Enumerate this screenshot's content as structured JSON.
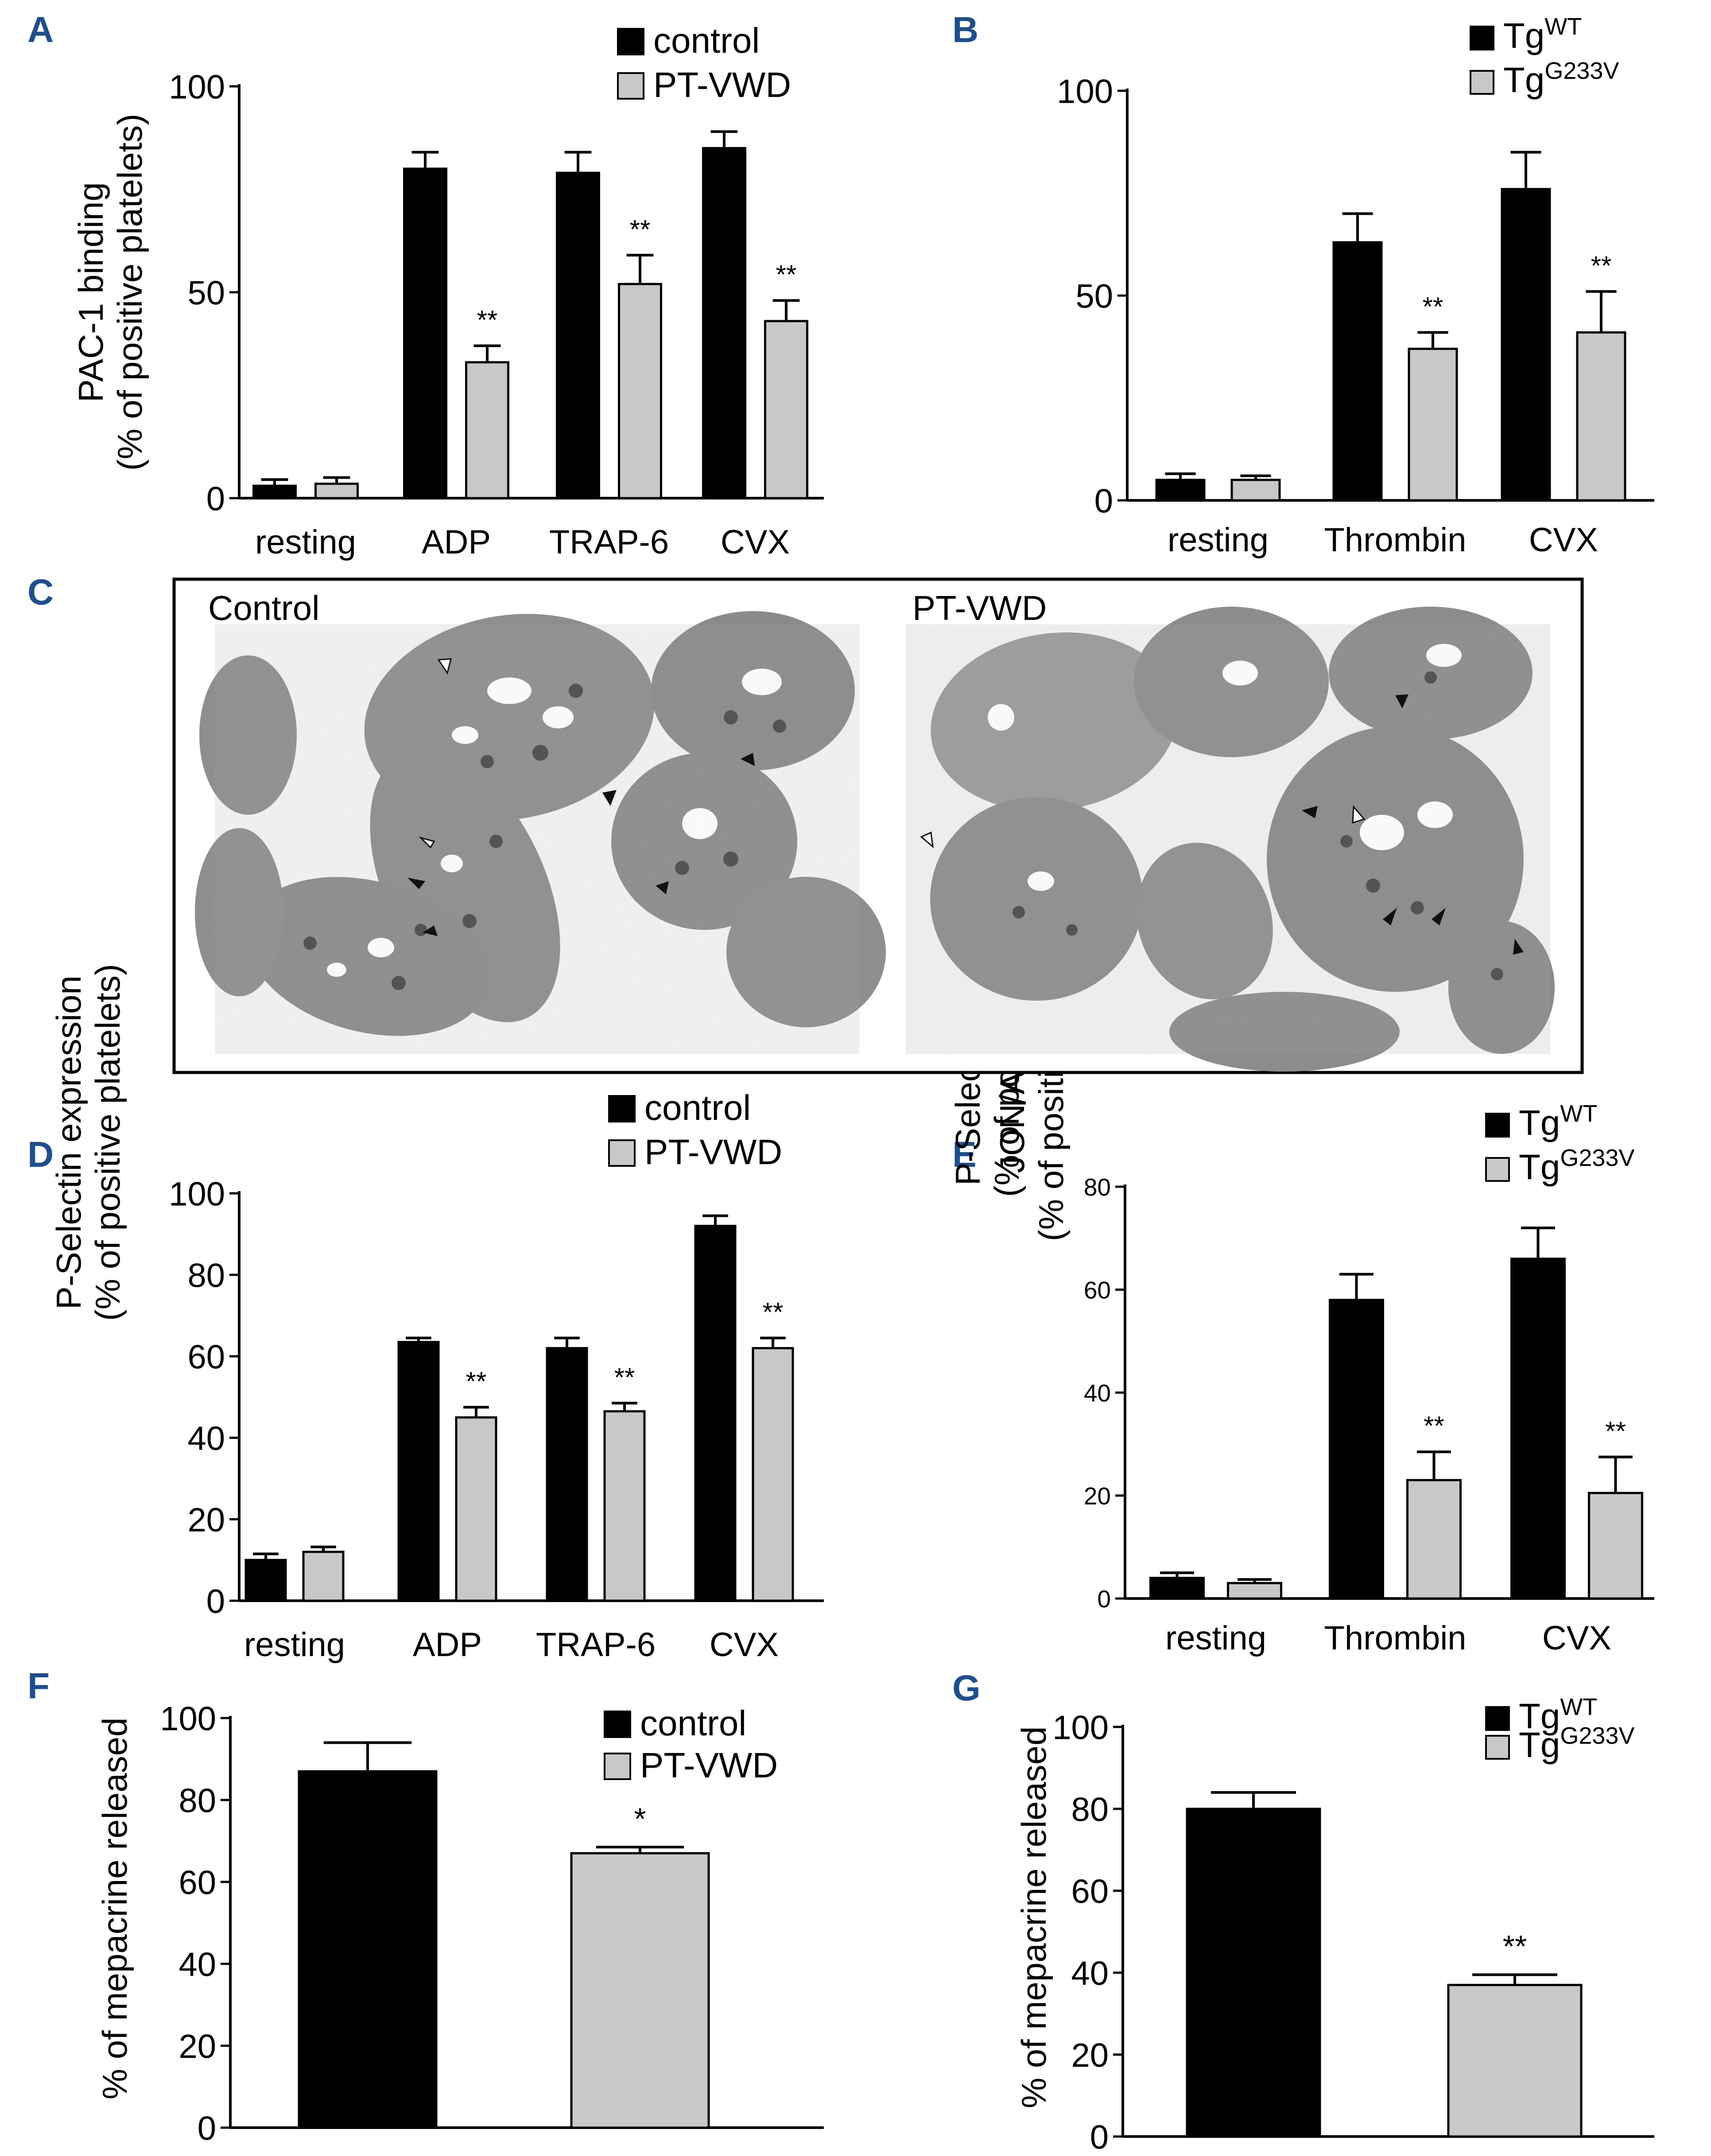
{
  "colors": {
    "black_bar": "#000000",
    "gray_bar": "#c8c8c8",
    "panel_letter": "#1f4e8c"
  },
  "chart_data": [
    {
      "id": "A",
      "panel_letter": "A",
      "type": "bar",
      "categories": [
        "resting",
        "ADP",
        "TRAP-6",
        "CVX"
      ],
      "ylabel_lines": [
        "PAC-1 binding",
        "(% of positive platelets)"
      ],
      "ylim": [
        0,
        100
      ],
      "yticks": [
        0,
        50,
        100
      ],
      "series": [
        {
          "name": "control",
          "color": "#000000",
          "values": [
            3,
            80,
            79,
            85
          ],
          "errors": [
            1.5,
            4,
            5,
            4
          ]
        },
        {
          "name": "PT-VWD",
          "color": "#c8c8c8",
          "values": [
            3.5,
            33,
            52,
            43
          ],
          "errors": [
            1.5,
            4,
            7,
            5
          ]
        }
      ],
      "significance": [
        "",
        "**",
        "**",
        "**"
      ],
      "legend_position": "top-right"
    },
    {
      "id": "B",
      "panel_letter": "B",
      "type": "bar",
      "categories": [
        "resting",
        "Thrombin",
        "CVX"
      ],
      "ylabel_lines": [
        "JON/A binding",
        "(% of positive platelets)"
      ],
      "ylim": [
        0,
        100
      ],
      "yticks": [
        0,
        50,
        100
      ],
      "series": [
        {
          "name": "Tg",
          "sup": "WT",
          "color": "#000000",
          "values": [
            5,
            63,
            76
          ],
          "errors": [
            1.5,
            7,
            9
          ]
        },
        {
          "name": "Tg",
          "sup": "G233V",
          "color": "#c8c8c8",
          "values": [
            5,
            37,
            41
          ],
          "errors": [
            1,
            4,
            10
          ]
        }
      ],
      "significance": [
        "",
        "**",
        "**"
      ],
      "legend_position": "top-right"
    },
    {
      "id": "D",
      "panel_letter": "D",
      "type": "bar",
      "categories": [
        "resting",
        "ADP",
        "TRAP-6",
        "CVX"
      ],
      "ylabel_lines": [
        "P-Selectin expression",
        "(% of positive platelets)"
      ],
      "ylim": [
        0,
        100
      ],
      "yticks": [
        0,
        20,
        40,
        60,
        80,
        100
      ],
      "series": [
        {
          "name": "control",
          "color": "#000000",
          "values": [
            10,
            63.5,
            62,
            92
          ],
          "errors": [
            1.5,
            1,
            2.5,
            2.5
          ]
        },
        {
          "name": "PT-VWD",
          "color": "#c8c8c8",
          "values": [
            12,
            45,
            46.5,
            62
          ],
          "errors": [
            1.2,
            2.5,
            2,
            2.5
          ]
        }
      ],
      "significance": [
        "",
        "**",
        "**",
        "**"
      ],
      "legend_position": "top-right"
    },
    {
      "id": "E",
      "panel_letter": "E",
      "type": "bar",
      "categories": [
        "resting",
        "Thrombin",
        "CVX"
      ],
      "ylabel_lines": [
        "P-Selectin expression",
        "(% of positive platelets)"
      ],
      "ylim": [
        0,
        80
      ],
      "yticks": [
        0,
        20,
        40,
        60,
        80
      ],
      "series": [
        {
          "name": "Tg",
          "sup": "WT",
          "color": "#000000",
          "values": [
            4,
            58,
            66
          ],
          "errors": [
            1,
            5,
            6
          ]
        },
        {
          "name": "Tg",
          "sup": "G233V",
          "color": "#c8c8c8",
          "values": [
            3,
            23,
            20.5
          ],
          "errors": [
            0.7,
            5.5,
            7
          ]
        }
      ],
      "significance": [
        "",
        "**",
        "**"
      ],
      "legend_position": "top-right"
    },
    {
      "id": "F",
      "panel_letter": "F",
      "type": "bar",
      "categories": [
        "control",
        "PT-VWD"
      ],
      "ylabel_lines": [
        "% of mepacrine released"
      ],
      "ylim": [
        0,
        100
      ],
      "yticks": [
        0,
        20,
        40,
        60,
        80,
        100
      ],
      "bars": [
        {
          "name": "control",
          "color": "#000000",
          "value": 87,
          "error": 7
        },
        {
          "name": "PT-VWD",
          "color": "#c8c8c8",
          "value": 67,
          "error": 1.5
        }
      ],
      "significance": [
        "",
        "*"
      ],
      "legend_position": "top-right"
    },
    {
      "id": "G",
      "panel_letter": "G",
      "type": "bar",
      "categories": [
        "Tg WT",
        "Tg G233V"
      ],
      "ylabel_lines": [
        "% of mepacrine released"
      ],
      "ylim": [
        0,
        100
      ],
      "yticks": [
        0,
        20,
        40,
        60,
        80,
        100
      ],
      "bars": [
        {
          "name": "Tg",
          "sup": "WT",
          "color": "#000000",
          "value": 80,
          "error": 4
        },
        {
          "name": "Tg",
          "sup": "G233V",
          "color": "#c8c8c8",
          "value": 37,
          "error": 2.5
        }
      ],
      "significance": [
        "",
        "**"
      ],
      "legend_position": "top-right"
    }
  ],
  "micrograph_panel": {
    "panel_letter": "C",
    "left_title": "Control",
    "right_title": "PT-VWD"
  }
}
